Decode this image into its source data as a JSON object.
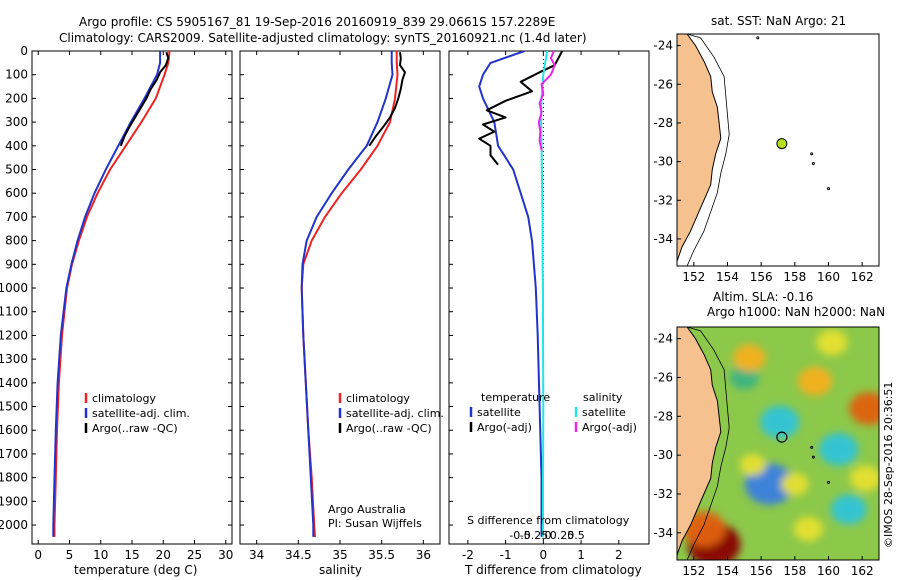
{
  "header": {
    "line1": "Argo profile: CS 5905167_81 19-Sep-2016 20160919_839 29.0661S 157.2289E",
    "line2": "Climatology: CARS2009. Satellite-adjusted climatology: synTS_20160921.nc (1.4d later)"
  },
  "colors": {
    "climatology": "#ee2222",
    "satellite": "#2233cc",
    "argo": "#000000",
    "salinity_sat": "#22e5e5",
    "salinity_argo": "#ee22ee",
    "land": "#f5c18f",
    "argo_marker": "#b5e01e"
  },
  "chart_data": [
    {
      "type": "line",
      "name": "temperature-panel",
      "xlabel": "temperature (deg C)",
      "ylabel": "",
      "xlim": [
        -1,
        31
      ],
      "ylim": [
        2080,
        0
      ],
      "xticks": [
        0,
        5,
        10,
        15,
        20,
        25,
        30
      ],
      "xtick_labels": [
        "0",
        "5",
        "10",
        "15",
        "20",
        "25",
        "30"
      ],
      "yticks": [
        0,
        100,
        200,
        300,
        400,
        500,
        600,
        700,
        800,
        900,
        1000,
        1100,
        1200,
        1300,
        1400,
        1500,
        1600,
        1700,
        1800,
        1900,
        2000
      ],
      "ytick_labels": [
        "0",
        "100",
        "200",
        "300",
        "400",
        "500",
        "600",
        "700",
        "800",
        "900",
        "1000",
        "1100",
        "1200",
        "1300",
        "1400",
        "1500",
        "1600",
        "1700",
        "1800",
        "1900",
        "2000"
      ],
      "legend": [
        "climatology",
        "satellite-adj. clim.",
        "Argo(..raw -QC)"
      ],
      "series": [
        {
          "name": "climatology",
          "color": "#ee2222",
          "depth": [
            0,
            50,
            100,
            200,
            300,
            400,
            500,
            600,
            700,
            800,
            900,
            1000,
            1200,
            1400,
            1600,
            1800,
            2000,
            2050
          ],
          "values": [
            21.0,
            20.8,
            20.2,
            18.8,
            16.5,
            14.0,
            11.5,
            9.5,
            7.8,
            6.5,
            5.4,
            4.6,
            3.8,
            3.3,
            3.0,
            2.8,
            2.6,
            2.6
          ]
        },
        {
          "name": "satellite-adj. clim.",
          "color": "#2233cc",
          "depth": [
            0,
            50,
            100,
            200,
            300,
            400,
            500,
            600,
            700,
            800,
            900,
            1000,
            1200,
            1400,
            1600,
            1800,
            2000,
            2050
          ],
          "values": [
            19.5,
            19.5,
            19.0,
            17.0,
            14.8,
            12.8,
            10.8,
            9.0,
            7.5,
            6.3,
            5.3,
            4.5,
            3.6,
            3.1,
            2.8,
            2.6,
            2.4,
            2.4
          ]
        },
        {
          "name": "Argo(..raw -QC)",
          "color": "#000000",
          "depth": [
            5,
            30,
            60,
            90,
            120,
            160,
            200,
            240,
            280,
            320,
            360,
            400
          ],
          "values": [
            20.5,
            20.8,
            20.4,
            19.5,
            19.0,
            18.0,
            17.3,
            16.4,
            15.5,
            14.6,
            13.8,
            13.2
          ]
        }
      ]
    },
    {
      "type": "line",
      "name": "salinity-panel",
      "xlabel": "salinity",
      "ylabel": "",
      "xlim": [
        33.8,
        36.2
      ],
      "ylim": [
        2080,
        0
      ],
      "xticks": [
        34,
        34.5,
        35,
        35.5,
        36
      ],
      "xtick_labels": [
        "34",
        "34.5",
        "35",
        "35.5",
        "36"
      ],
      "legend": [
        "climatology",
        "satellite-adj. clim.",
        "Argo(..raw -QC)"
      ],
      "annotation": [
        "Argo Australia",
        "PI: Susan Wijffels"
      ],
      "series": [
        {
          "name": "climatology",
          "color": "#ee2222",
          "depth": [
            0,
            50,
            100,
            200,
            300,
            400,
            500,
            600,
            700,
            800,
            900,
            1000,
            1200,
            1400,
            1600,
            1800,
            2000,
            2050
          ],
          "values": [
            35.68,
            35.68,
            35.69,
            35.66,
            35.6,
            35.45,
            35.25,
            35.02,
            34.82,
            34.66,
            34.56,
            34.54,
            34.56,
            34.59,
            34.62,
            34.66,
            34.69,
            34.7
          ]
        },
        {
          "name": "satellite-adj. clim.",
          "color": "#2233cc",
          "depth": [
            0,
            50,
            100,
            200,
            300,
            400,
            500,
            600,
            700,
            800,
            900,
            1000,
            1200,
            1400,
            1600,
            1800,
            2000,
            2050
          ],
          "values": [
            35.62,
            35.62,
            35.63,
            35.55,
            35.45,
            35.32,
            35.1,
            34.9,
            34.72,
            34.6,
            34.55,
            34.54,
            34.56,
            34.59,
            34.62,
            34.65,
            34.68,
            34.68
          ]
        },
        {
          "name": "Argo(..raw -QC)",
          "color": "#000000",
          "depth": [
            5,
            30,
            60,
            90,
            120,
            160,
            200,
            240,
            280,
            320,
            360,
            400
          ],
          "values": [
            35.72,
            35.73,
            35.72,
            35.78,
            35.75,
            35.73,
            35.7,
            35.66,
            35.6,
            35.52,
            35.43,
            35.35
          ]
        }
      ]
    },
    {
      "type": "line",
      "name": "difference-panel",
      "xlabel": "T difference from climatology",
      "xlabel_top": "S difference from climatology",
      "xlim": [
        -2.5,
        2.8
      ],
      "ylim": [
        2080,
        0
      ],
      "xticks": [
        -2,
        -1,
        0,
        1,
        2
      ],
      "xtick_labels": [
        "-2",
        "-1",
        "0",
        "1",
        "2"
      ],
      "sticks": [
        -0.5,
        -0.25,
        0,
        0.25,
        0.5
      ],
      "stick_labels": [
        "-0.5",
        "-0.25",
        "0",
        "0.25",
        "0.5"
      ],
      "legend_headers": [
        "temperature",
        "salinity"
      ],
      "legend": [
        "satellite",
        "Argo(-adj)",
        "satellite",
        "Argo(-adj)"
      ],
      "series": [
        {
          "name": "T satellite",
          "color": "#2233cc",
          "depth": [
            0,
            50,
            100,
            150,
            200,
            300,
            400,
            500,
            600,
            700,
            800,
            900,
            1000,
            1200,
            1500,
            1800,
            2050
          ],
          "values": [
            -0.5,
            -1.4,
            -1.6,
            -1.7,
            -1.6,
            -1.3,
            -1.2,
            -0.8,
            -0.6,
            -0.4,
            -0.3,
            -0.25,
            -0.2,
            -0.15,
            -0.1,
            -0.05,
            -0.05
          ]
        },
        {
          "name": "T Argo(-adj)",
          "color": "#000000",
          "depth": [
            0,
            60,
            90,
            130,
            170,
            210,
            250,
            280,
            310,
            340,
            370,
            400,
            440,
            480
          ],
          "values": [
            0.5,
            0.3,
            -0.1,
            -0.6,
            -0.3,
            -1.0,
            -1.5,
            -1.0,
            -1.6,
            -1.3,
            -1.7,
            -1.4,
            -1.4,
            -1.2
          ]
        },
        {
          "name": "S satellite",
          "color": "#22e5e5",
          "depth": [
            0,
            50,
            100,
            200,
            300,
            400,
            500,
            600,
            700,
            800,
            900,
            1000,
            1200,
            1500,
            1800,
            2050
          ],
          "values": [
            0.1,
            0.05,
            0.0,
            -0.05,
            -0.06,
            -0.05,
            -0.04,
            -0.03,
            -0.02,
            -0.02,
            -0.02,
            -0.01,
            -0.01,
            0.0,
            -0.01,
            -0.01
          ]
        },
        {
          "name": "S Argo(-adj)",
          "color": "#ee22ee",
          "depth": [
            0,
            30,
            60,
            100,
            140,
            180,
            220,
            260,
            300,
            340,
            380,
            420
          ],
          "values": [
            0.28,
            0.2,
            0.3,
            0.2,
            -0.05,
            0.0,
            -0.1,
            -0.05,
            -0.12,
            -0.08,
            -0.1,
            -0.04
          ]
        }
      ]
    },
    {
      "type": "map",
      "name": "sst-map",
      "title": "sat. SST: NaN  Argo: 21",
      "xlim": [
        151,
        163
      ],
      "ylim": [
        -35.4,
        -23.4
      ],
      "xticks": [
        152,
        154,
        156,
        158,
        160,
        162
      ],
      "xtick_labels": [
        "152",
        "154",
        "156",
        "158",
        "160",
        "162"
      ],
      "yticks": [
        -24,
        -26,
        -28,
        -30,
        -32,
        -34
      ],
      "ytick_labels": [
        "-24",
        "-26",
        "-28",
        "-30",
        "-32",
        "-34"
      ],
      "argo_position": [
        157.23,
        -29.07
      ]
    },
    {
      "type": "heatmap",
      "name": "sla-map",
      "title_line1": "Altim. SLA: -0.16",
      "title_line2": "Argo h1000: NaN h2000: NaN",
      "xlim": [
        151,
        163
      ],
      "ylim": [
        -35.4,
        -23.4
      ],
      "xticks": [
        152,
        154,
        156,
        158,
        160,
        162
      ],
      "xtick_labels": [
        "152",
        "154",
        "156",
        "158",
        "160",
        "162"
      ],
      "yticks": [
        -24,
        -26,
        -28,
        -30,
        -32,
        -34
      ],
      "ytick_labels": [
        "-24",
        "-26",
        "-28",
        "-30",
        "-32",
        "-34"
      ],
      "argo_position": [
        157.23,
        -29.07
      ],
      "anomaly_blobs": [
        {
          "lon": 153.2,
          "lat": -34.6,
          "value": 1.0
        },
        {
          "lon": 152.6,
          "lat": -33.8,
          "value": 0.7
        },
        {
          "lon": 156.5,
          "lat": -31.5,
          "value": -0.9
        },
        {
          "lon": 157.1,
          "lat": -28.3,
          "value": -0.6
        },
        {
          "lon": 160.6,
          "lat": -29.7,
          "value": -0.6
        },
        {
          "lon": 161.2,
          "lat": -32.8,
          "value": -0.5
        },
        {
          "lon": 155.0,
          "lat": -26.0,
          "value": -0.3
        },
        {
          "lon": 162.4,
          "lat": -27.6,
          "value": 0.6
        },
        {
          "lon": 159.2,
          "lat": -26.2,
          "value": 0.45
        },
        {
          "lon": 155.3,
          "lat": -25.0,
          "value": 0.4
        },
        {
          "lon": 162.2,
          "lat": -31.2,
          "value": 0.35
        },
        {
          "lon": 158.8,
          "lat": -33.8,
          "value": 0.3
        },
        {
          "lon": 155.5,
          "lat": -30.5,
          "value": 0.2
        },
        {
          "lon": 160.2,
          "lat": -24.2,
          "value": 0.35
        },
        {
          "lon": 158.0,
          "lat": -31.5,
          "value": 0.25
        }
      ]
    }
  ],
  "side_caption": "©IMOS 28-Sep-2016 20:36:51"
}
